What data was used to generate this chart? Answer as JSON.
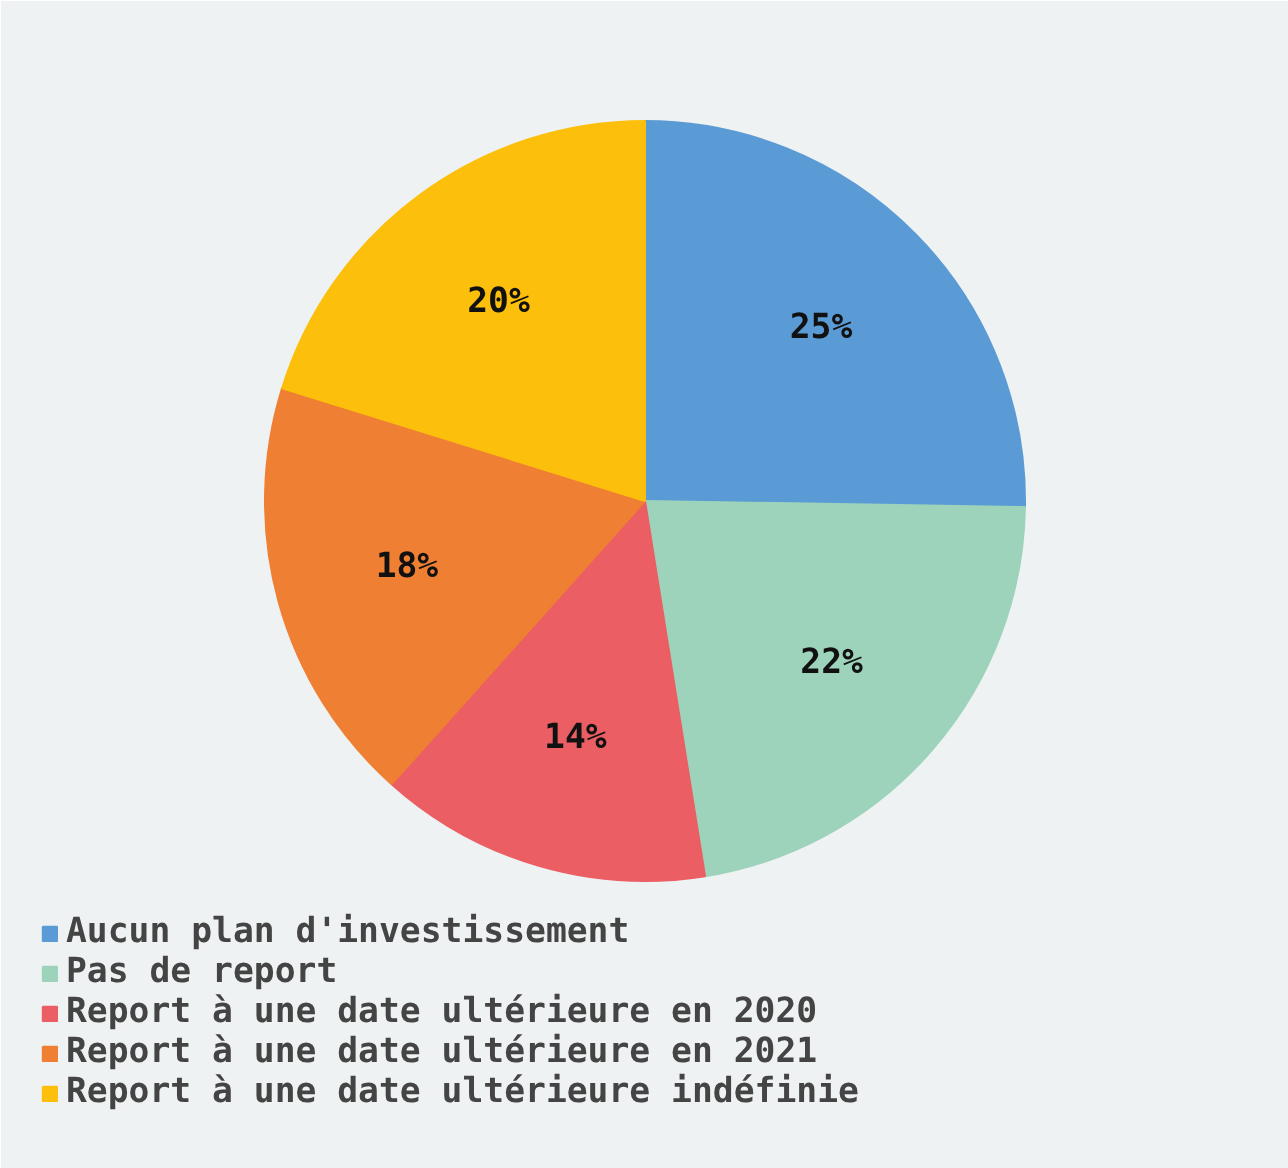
{
  "chart_data": {
    "type": "pie",
    "categories": [
      "Aucun plan d'investissement",
      "Pas de report",
      "Report à une date ultérieure en 2020",
      "Report à une date ultérieure en 2021",
      "Report à une date ultérieure indéfinie"
    ],
    "values": [
      25,
      22,
      14,
      18,
      20
    ],
    "colors": [
      "#5b9bd5",
      "#9dd3bb",
      "#eb5e63",
      "#ef7f33",
      "#fcbf0b"
    ],
    "value_labels": [
      "25%",
      "22%",
      "14%",
      "18%",
      "20%"
    ],
    "legend": "bottom left"
  }
}
